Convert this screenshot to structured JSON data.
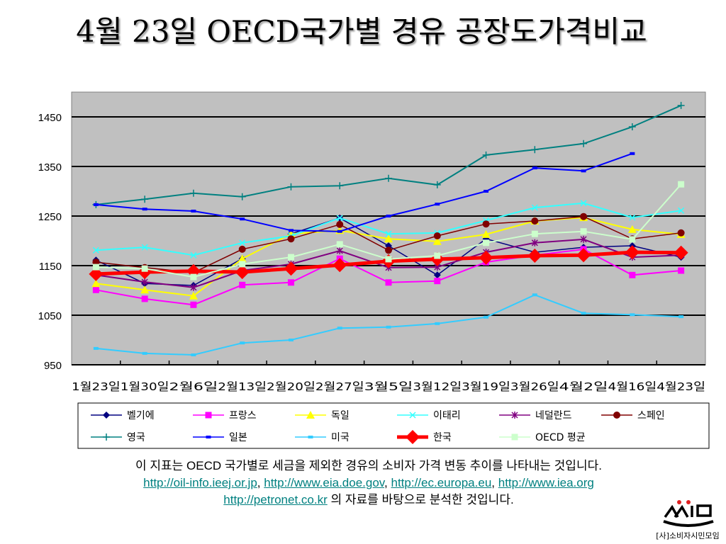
{
  "title": "4월 23일 OECD국가별 경유 공장도가격비교",
  "chart_data": {
    "type": "line",
    "title": "",
    "xlabel": "",
    "ylabel": "",
    "ylim": [
      950,
      1500
    ],
    "yticks": [
      950,
      1050,
      1150,
      1250,
      1350,
      1450
    ],
    "grid": true,
    "legend_placement": "bottom",
    "plot_background": "#c0c0c0",
    "categories": [
      "1월23일",
      "1월30일",
      "2월6일",
      "2월13일",
      "2월20일",
      "2월27일",
      "3월5일",
      "3월12일",
      "3월19일",
      "3월26일",
      "4월2일",
      "4월16일",
      "4월23일"
    ],
    "series": [
      {
        "name": "벨기에",
        "color": "#000080",
        "marker": "diamond",
        "values": [
          1161,
          1114,
          1110,
          1164,
          1214,
          1246,
          1190,
          1131,
          1204,
          1177,
          1187,
          1190,
          1167
        ]
      },
      {
        "name": "프랑스",
        "color": "#ff00ff",
        "marker": "square",
        "values": [
          1101,
          1083,
          1071,
          1111,
          1116,
          1164,
          1116,
          1119,
          1157,
          1171,
          1183,
          1131,
          1140
        ]
      },
      {
        "name": "독일",
        "color": "#ffff00",
        "marker": "triangle",
        "values": [
          1114,
          1101,
          1089,
          1164,
          1214,
          1221,
          1204,
          1199,
          1213,
          1240,
          1247,
          1223,
          1213
        ]
      },
      {
        "name": "이태리",
        "color": "#33ffff",
        "marker": "x",
        "values": [
          1181,
          1187,
          1171,
          1196,
          1210,
          1246,
          1214,
          1216,
          1241,
          1267,
          1276,
          1247,
          1261
        ]
      },
      {
        "name": "네덜란드",
        "color": "#800080",
        "marker": "star",
        "values": [
          1131,
          1117,
          1106,
          1140,
          1153,
          1180,
          1146,
          1147,
          1177,
          1196,
          1203,
          1167,
          1171
        ]
      },
      {
        "name": "스페인",
        "color": "#800000",
        "marker": "circle",
        "values": [
          1157,
          1146,
          1136,
          1183,
          1204,
          1233,
          1181,
          1210,
          1234,
          1240,
          1249,
          1204,
          1216
        ]
      },
      {
        "name": "영국",
        "color": "#008080",
        "marker": "plus",
        "values": [
          1273,
          1284,
          1296,
          1289,
          1309,
          1311,
          1326,
          1313,
          1373,
          1384,
          1396,
          1430,
          1473
        ]
      },
      {
        "name": "일본",
        "color": "#0000ff",
        "marker": "dash",
        "values": [
          1273,
          1264,
          1260,
          1244,
          1221,
          1219,
          1250,
          1274,
          1300,
          1347,
          1341,
          1376,
          null
        ]
      },
      {
        "name": "미국",
        "color": "#33ccff",
        "marker": "dash",
        "values": [
          983,
          973,
          970,
          994,
          1000,
          1024,
          1026,
          1033,
          1046,
          1091,
          1054,
          1051,
          1047
        ]
      },
      {
        "name": "한국",
        "color": "#ff0000",
        "marker": "bigdiamond",
        "values": [
          1133,
          1137,
          1139,
          1137,
          1144,
          1151,
          1159,
          1163,
          1166,
          1170,
          1171,
          1177,
          1176
        ]
      },
      {
        "name": "OECD 평균",
        "color": "#ccffcc",
        "marker": "square",
        "values": [
          1147,
          1144,
          1127,
          1153,
          1167,
          1193,
          1163,
          1170,
          1196,
          1214,
          1219,
          1203,
          1314
        ]
      }
    ]
  },
  "note": {
    "line1": "이 지표는 OECD 국가별로 세금을 제외한 경유의 소비자 가격 변동 추이를 나타내는 것입니다.",
    "links": [
      "http://oil-info.ieej.or.jp",
      "http://www.eia.doe.gov",
      "http://ec.europa.eu",
      "http://www.iea.org"
    ],
    "link5": "http://petronet.co.kr",
    "line3_suffix": " 의 자료를 바탕으로 분석한 것입니다.",
    "separator": ", "
  },
  "logo": {
    "text": "소시모",
    "subtext": "[사]소비자시민모임"
  }
}
